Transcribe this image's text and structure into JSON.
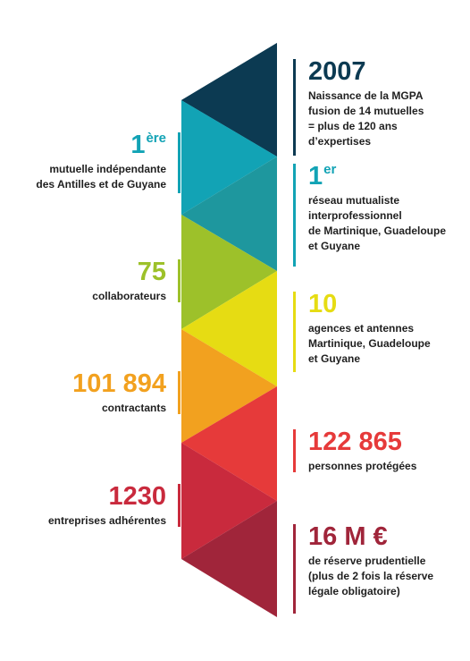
{
  "colors": {
    "navy": "#0c3a52",
    "teal": "#12a3b5",
    "teal_dark": "#1e979e",
    "green": "#9dc12a",
    "yellow": "#e6dc13",
    "orange": "#f2a11f",
    "red": "#e63a3a",
    "crimson": "#c92a3d",
    "maroon": "#a0253a"
  },
  "stats": {
    "s2007": {
      "value": "2007",
      "lines": [
        "Naissance de la MGPA",
        "fusion de 14 mutuelles",
        "= plus de 120 ans",
        "d’expertises"
      ]
    },
    "first_mutuelle": {
      "value": "1",
      "sup": "ère",
      "lines": [
        "mutuelle indépendante",
        "des Antilles et de Guyane"
      ]
    },
    "first_reseau": {
      "value": "1",
      "sup": "er",
      "lines": [
        "réseau mutualiste",
        "interprofessionnel",
        "de Martinique, Guadeloupe",
        "et Guyane"
      ]
    },
    "collab": {
      "value": "75",
      "lines": [
        "collaborateurs"
      ]
    },
    "agences": {
      "value": "10",
      "lines": [
        "agences et antennes",
        "Martinique, Guadeloupe",
        "et Guyane"
      ]
    },
    "contractants": {
      "value": "101 894",
      "lines": [
        "contractants"
      ]
    },
    "personnes": {
      "value": "122 865",
      "lines": [
        "personnes protégées"
      ]
    },
    "entreprises": {
      "value": "1230",
      "lines": [
        "entreprises adhérentes"
      ]
    },
    "reserve": {
      "value": "16 M €",
      "lines": [
        "de réserve prudentielle",
        "(plus de 2 fois la réserve",
        "légale obligatoire)"
      ]
    }
  }
}
